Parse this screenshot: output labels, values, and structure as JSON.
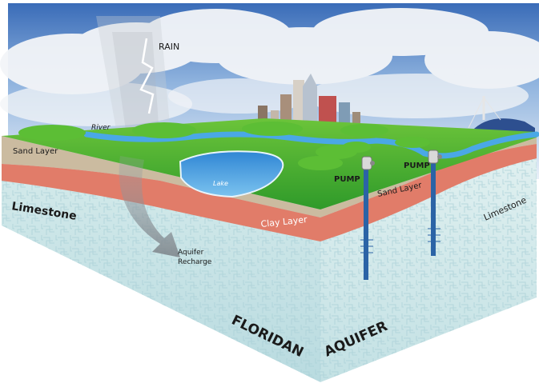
{
  "diagram": {
    "labels": {
      "rain": "RAIN",
      "river": "River",
      "sand_layer_left": "Sand Layer",
      "lake": "Lake",
      "limestone_left": "Limestone",
      "clay_layer": "Clay Layer",
      "aquifer_recharge_line1": "Aquifer",
      "aquifer_recharge_line2": "Recharge",
      "pump_1": "PUMP",
      "pump_2": "PUMP",
      "sand_layer_right": "Sand Layer",
      "limestone_right": "Limestone",
      "floridan": "FLORIDAN",
      "aquifer": "AQUIFER"
    },
    "colors": {
      "sky_top": "#3f72bd",
      "cloud": "#f4f6f9",
      "grass": "#3fae2e",
      "grass_light": "#7ed321",
      "water": "#3f9fe0",
      "sand": "#c8b89c",
      "clay": "#e07a66",
      "limestone": "#d7ecec"
    }
  }
}
